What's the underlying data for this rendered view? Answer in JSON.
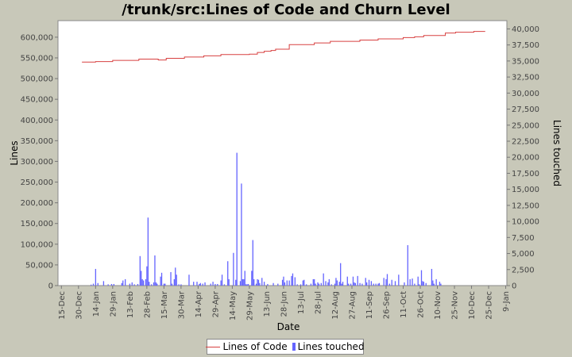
{
  "chart_data": {
    "type": "line+bar",
    "title": "/trunk/src:Lines of Code and Churn Level",
    "xlabel": "Date",
    "ylabel_left": "Lines",
    "ylabel_right": "Lines touched",
    "x_tick_labels": [
      "15-Dec",
      "30-Dec",
      "14-Jan",
      "29-Jan",
      "13-Feb",
      "28-Feb",
      "15-Mar",
      "30-Mar",
      "14-Apr",
      "29-Apr",
      "14-May",
      "29-May",
      "13-Jun",
      "28-Jun",
      "13-Jul",
      "28-Jul",
      "12-Aug",
      "27-Aug",
      "11-Sep",
      "26-Sep",
      "11-Oct",
      "26-Oct",
      "10-Nov",
      "25-Nov",
      "10-Dec",
      "25-Dec",
      "9-Jan"
    ],
    "y_left_ticks": [
      "0",
      "50,000",
      "100,000",
      "150,000",
      "200,000",
      "250,000",
      "300,000",
      "350,000",
      "400,000",
      "450,000",
      "500,000",
      "550,000",
      "600,000"
    ],
    "y_right_ticks": [
      "0",
      "2,500",
      "5,000",
      "7,500",
      "10,000",
      "12,500",
      "15,000",
      "17,500",
      "20,000",
      "22,500",
      "25,000",
      "27,500",
      "30,000",
      "32,500",
      "35,000",
      "37,500",
      "40,000"
    ],
    "ylim_left": [
      0,
      640000
    ],
    "ylim_right": [
      0,
      41290
    ],
    "x_range_days": [
      -3,
      391
    ],
    "grid": false,
    "legend_position": "bottom",
    "colors": {
      "loc": "#d84040",
      "churn": "#6464ff",
      "plot_bg": "#ffffff",
      "page_bg": "#c8c8b9"
    },
    "series": [
      {
        "name": "Lines of Code",
        "kind": "step-line",
        "axis": "left",
        "points": [
          [
            18,
            540000
          ],
          [
            30,
            541000
          ],
          [
            45,
            544000
          ],
          [
            68,
            547000
          ],
          [
            85,
            545000
          ],
          [
            92,
            549000
          ],
          [
            108,
            552000
          ],
          [
            125,
            555000
          ],
          [
            140,
            558000
          ],
          [
            165,
            559000
          ],
          [
            172,
            563000
          ],
          [
            178,
            566000
          ],
          [
            184,
            568000
          ],
          [
            188,
            571000
          ],
          [
            200,
            582000
          ],
          [
            222,
            586000
          ],
          [
            236,
            590000
          ],
          [
            262,
            593000
          ],
          [
            278,
            596000
          ],
          [
            300,
            599000
          ],
          [
            310,
            601000
          ],
          [
            318,
            604000
          ],
          [
            337,
            610000
          ],
          [
            346,
            612000
          ],
          [
            362,
            614000
          ],
          [
            372,
            614000
          ]
        ]
      },
      {
        "name": "Lines touched",
        "kind": "bar",
        "axis": "right",
        "points": [
          [
            26,
            150
          ],
          [
            28,
            300
          ],
          [
            30,
            2600
          ],
          [
            32,
            400
          ],
          [
            37,
            700
          ],
          [
            41,
            200
          ],
          [
            44,
            250
          ],
          [
            46,
            250
          ],
          [
            53,
            400
          ],
          [
            54,
            800
          ],
          [
            56,
            1000
          ],
          [
            60,
            300
          ],
          [
            62,
            500
          ],
          [
            64,
            200
          ],
          [
            67,
            250
          ],
          [
            69,
            4600
          ],
          [
            70,
            2300
          ],
          [
            71,
            1000
          ],
          [
            72,
            800
          ],
          [
            74,
            1000
          ],
          [
            75,
            3000
          ],
          [
            76,
            10600
          ],
          [
            77,
            600
          ],
          [
            79,
            200
          ],
          [
            81,
            500
          ],
          [
            82,
            4700
          ],
          [
            83,
            500
          ],
          [
            84,
            300
          ],
          [
            87,
            1400
          ],
          [
            88,
            2000
          ],
          [
            90,
            300
          ],
          [
            91,
            300
          ],
          [
            96,
            2100
          ],
          [
            97,
            300
          ],
          [
            99,
            1000
          ],
          [
            100,
            2800
          ],
          [
            101,
            1700
          ],
          [
            103,
            200
          ],
          [
            105,
            200
          ],
          [
            112,
            1700
          ],
          [
            116,
            600
          ],
          [
            119,
            600
          ],
          [
            121,
            250
          ],
          [
            122,
            400
          ],
          [
            124,
            300
          ],
          [
            126,
            500
          ],
          [
            131,
            300
          ],
          [
            133,
            600
          ],
          [
            135,
            250
          ],
          [
            137,
            250
          ],
          [
            140,
            800
          ],
          [
            141,
            1700
          ],
          [
            143,
            200
          ],
          [
            146,
            3800
          ],
          [
            147,
            1000
          ],
          [
            151,
            5100
          ],
          [
            153,
            900
          ],
          [
            154,
            20700
          ],
          [
            157,
            700
          ],
          [
            158,
            15900
          ],
          [
            159,
            1000
          ],
          [
            160,
            1000
          ],
          [
            161,
            2300
          ],
          [
            162,
            200
          ],
          [
            163,
            200
          ],
          [
            164,
            250
          ],
          [
            167,
            2300
          ],
          [
            168,
            7100
          ],
          [
            169,
            1000
          ],
          [
            171,
            300
          ],
          [
            172,
            1000
          ],
          [
            173,
            900
          ],
          [
            174,
            400
          ],
          [
            176,
            1200
          ],
          [
            178,
            600
          ],
          [
            181,
            250
          ],
          [
            186,
            400
          ],
          [
            190,
            300
          ],
          [
            194,
            900
          ],
          [
            195,
            1400
          ],
          [
            196,
            500
          ],
          [
            198,
            800
          ],
          [
            200,
            800
          ],
          [
            202,
            1500
          ],
          [
            203,
            1900
          ],
          [
            205,
            1300
          ],
          [
            207,
            200
          ],
          [
            210,
            200
          ],
          [
            212,
            800
          ],
          [
            213,
            900
          ],
          [
            215,
            200
          ],
          [
            219,
            300
          ],
          [
            221,
            1000
          ],
          [
            222,
            1000
          ],
          [
            223,
            300
          ],
          [
            225,
            500
          ],
          [
            226,
            300
          ],
          [
            228,
            400
          ],
          [
            230,
            1900
          ],
          [
            232,
            700
          ],
          [
            234,
            500
          ],
          [
            235,
            1000
          ],
          [
            237,
            200
          ],
          [
            240,
            300
          ],
          [
            241,
            1200
          ],
          [
            242,
            800
          ],
          [
            244,
            600
          ],
          [
            245,
            3500
          ],
          [
            246,
            300
          ],
          [
            247,
            600
          ],
          [
            251,
            1400
          ],
          [
            252,
            300
          ],
          [
            254,
            300
          ],
          [
            256,
            1400
          ],
          [
            257,
            500
          ],
          [
            258,
            400
          ],
          [
            260,
            1500
          ],
          [
            262,
            400
          ],
          [
            264,
            300
          ],
          [
            267,
            1200
          ],
          [
            268,
            500
          ],
          [
            270,
            900
          ],
          [
            272,
            700
          ],
          [
            274,
            300
          ],
          [
            276,
            300
          ],
          [
            278,
            300
          ],
          [
            279,
            400
          ],
          [
            283,
            1200
          ],
          [
            285,
            1000
          ],
          [
            286,
            1800
          ],
          [
            288,
            300
          ],
          [
            290,
            900
          ],
          [
            293,
            700
          ],
          [
            296,
            1700
          ],
          [
            301,
            500
          ],
          [
            304,
            6300
          ],
          [
            306,
            1000
          ],
          [
            308,
            1100
          ],
          [
            310,
            300
          ],
          [
            313,
            1400
          ],
          [
            314,
            200
          ],
          [
            316,
            2400
          ],
          [
            317,
            700
          ],
          [
            318,
            600
          ],
          [
            320,
            400
          ],
          [
            325,
            2600
          ],
          [
            326,
            800
          ],
          [
            327,
            300
          ],
          [
            329,
            1000
          ],
          [
            332,
            600
          ],
          [
            333,
            300
          ]
        ]
      }
    ]
  }
}
